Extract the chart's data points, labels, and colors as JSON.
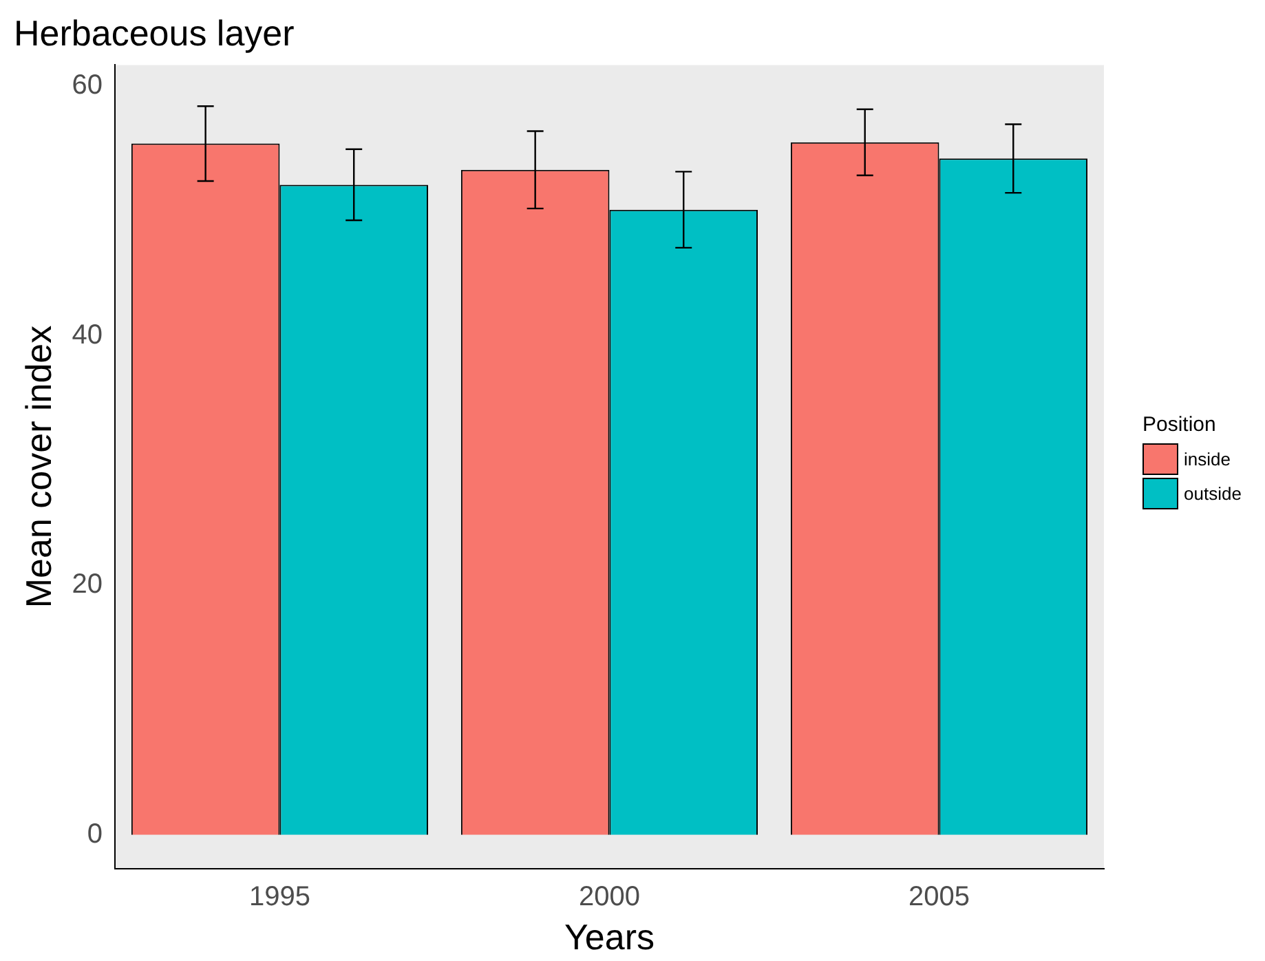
{
  "chart_data": {
    "type": "bar",
    "title": "Herbaceous layer",
    "xlabel": "Years",
    "ylabel": "Mean cover index",
    "legend_title": "Position",
    "categories": [
      "1995",
      "2000",
      "2005"
    ],
    "series": [
      {
        "name": "inside",
        "color": "#f8766d",
        "values": [
          55.4,
          53.3,
          55.5
        ],
        "errors": [
          3.0,
          3.1,
          2.65
        ]
      },
      {
        "name": "outside",
        "color": "#00bfc4",
        "values": [
          52.1,
          50.1,
          54.2
        ],
        "errors": [
          2.85,
          3.05,
          2.75
        ]
      }
    ],
    "ylim": [
      -2.7,
      61.7
    ],
    "yticks": [
      0,
      20,
      40,
      60
    ],
    "grid": false,
    "legend": "right"
  }
}
